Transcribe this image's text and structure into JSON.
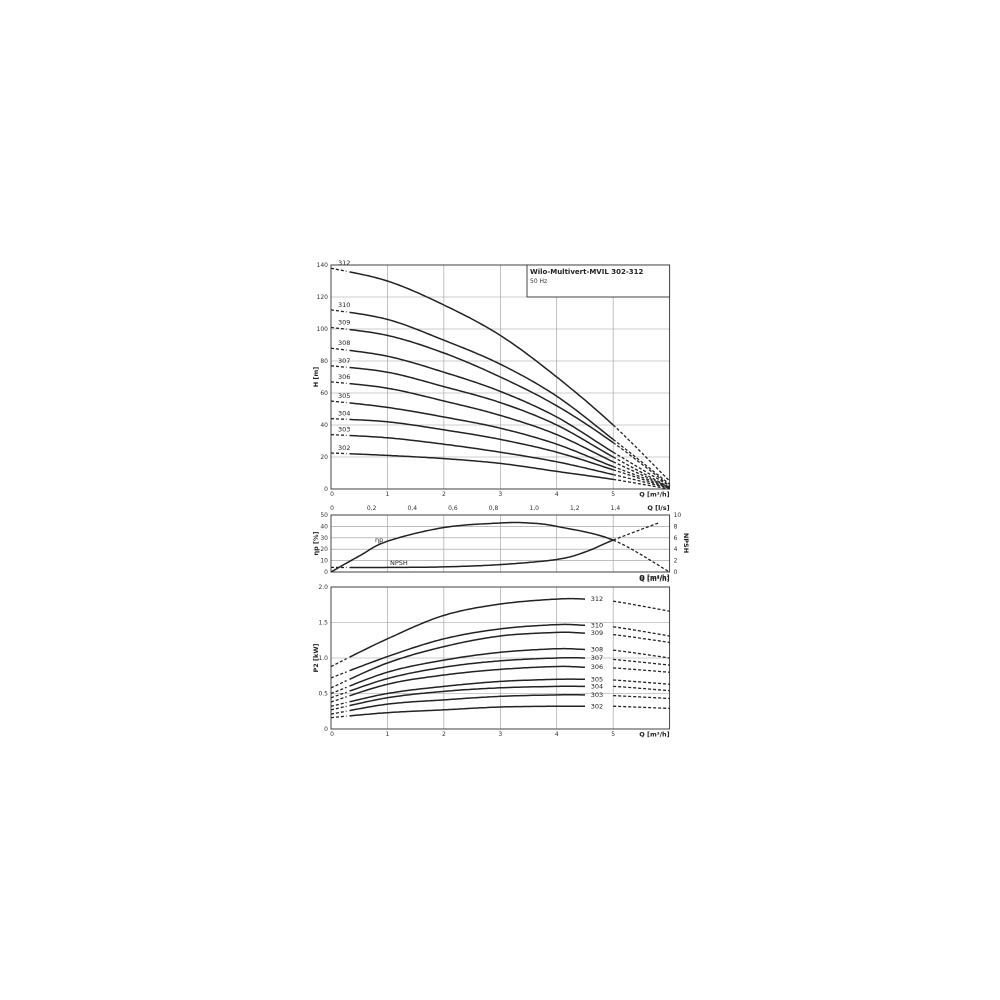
{
  "chart_data": [
    {
      "type": "line",
      "title": "Wilo-Multivert-MVIL 302-312",
      "subtitle": "50 Hz",
      "ylabel": "H [m]",
      "xlabel": "Q [m³/h]",
      "x2label": "Q [l/s]",
      "xlim": [
        0,
        6
      ],
      "ylim": [
        0,
        140
      ],
      "xticks": [
        "0",
        "1",
        "2",
        "3",
        "4",
        "5"
      ],
      "x2ticks": [
        "0",
        "0,2",
        "0,4",
        "0,6",
        "0,8",
        "1,0",
        "1,2",
        "1,4"
      ],
      "yticks": [
        "0",
        "20",
        "40",
        "60",
        "80",
        "100",
        "120",
        "140"
      ],
      "grid": true,
      "x": [
        0,
        1,
        2,
        3,
        4,
        5,
        6
      ],
      "series": [
        {
          "name": "312",
          "values": [
            138,
            130,
            115,
            96,
            70,
            40,
            5
          ]
        },
        {
          "name": "310",
          "values": [
            112,
            106,
            93,
            78,
            58,
            31,
            3
          ]
        },
        {
          "name": "309",
          "values": [
            101,
            96,
            85,
            70,
            52,
            29,
            2
          ]
        },
        {
          "name": "308",
          "values": [
            88,
            83,
            73,
            61,
            45,
            23,
            2
          ]
        },
        {
          "name": "307",
          "values": [
            77,
            73,
            64,
            54,
            40,
            20,
            1
          ]
        },
        {
          "name": "306",
          "values": [
            67,
            63,
            55,
            46,
            34,
            17,
            1
          ]
        },
        {
          "name": "305",
          "values": [
            55,
            51,
            45,
            38,
            28,
            14,
            1
          ]
        },
        {
          "name": "304",
          "values": [
            44,
            42,
            37,
            31,
            23,
            12,
            0.5
          ]
        },
        {
          "name": "303",
          "values": [
            34,
            32,
            28,
            23,
            17,
            9,
            0.5
          ]
        },
        {
          "name": "302",
          "values": [
            22.5,
            21,
            19,
            16,
            11,
            6,
            0
          ]
        }
      ]
    },
    {
      "type": "line",
      "ylabel": "ηp [%]",
      "y2label": "NPSH",
      "xlabel": "Q [m³/h]",
      "xlim": [
        0,
        6
      ],
      "ylim": [
        0,
        50
      ],
      "y2lim": [
        0,
        10
      ],
      "yticks": [
        "0",
        "10",
        "20",
        "30",
        "40",
        "50"
      ],
      "y2ticks": [
        "0",
        "2",
        "4",
        "6",
        "8",
        "10"
      ],
      "grid": true,
      "series": [
        {
          "name": "ηp",
          "axis": "left",
          "x": [
            0,
            0.5,
            1,
            2,
            3,
            3.5,
            4,
            5,
            6
          ],
          "values": [
            0,
            14,
            27,
            39,
            43,
            43,
            40,
            28,
            0
          ]
        },
        {
          "name": "NPSH",
          "axis": "right",
          "x": [
            0,
            1,
            2,
            3,
            4,
            4.5,
            5,
            5.8
          ],
          "values": [
            0.8,
            0.8,
            0.9,
            1.3,
            2.2,
            3.5,
            5.6,
            8.6
          ]
        }
      ]
    },
    {
      "type": "line",
      "ylabel": "P2 [kW]",
      "xlabel": "Q [m³/h]",
      "xlim": [
        0,
        6
      ],
      "ylim": [
        0,
        2.0
      ],
      "xticks": [
        "0",
        "1",
        "2",
        "3",
        "4",
        "5"
      ],
      "yticks": [
        "0",
        "0.5",
        "1.0",
        "1.5",
        "2.0"
      ],
      "grid": true,
      "x": [
        0,
        1,
        2,
        3,
        4,
        4.5,
        5,
        6
      ],
      "series": [
        {
          "name": "312",
          "values": [
            0.88,
            1.27,
            1.6,
            1.76,
            1.83,
            1.83,
            1.8,
            1.66
          ]
        },
        {
          "name": "310",
          "values": [
            0.72,
            1.02,
            1.27,
            1.41,
            1.47,
            1.46,
            1.44,
            1.31
          ]
        },
        {
          "name": "309",
          "values": [
            0.58,
            0.93,
            1.16,
            1.31,
            1.36,
            1.35,
            1.33,
            1.22
          ]
        },
        {
          "name": "308",
          "values": [
            0.5,
            0.8,
            0.97,
            1.08,
            1.13,
            1.12,
            1.11,
            1.0
          ]
        },
        {
          "name": "307",
          "values": [
            0.44,
            0.71,
            0.87,
            0.96,
            1.0,
            1.0,
            0.98,
            0.9
          ]
        },
        {
          "name": "306",
          "values": [
            0.38,
            0.63,
            0.76,
            0.84,
            0.88,
            0.87,
            0.86,
            0.8
          ]
        },
        {
          "name": "305",
          "values": [
            0.32,
            0.5,
            0.6,
            0.67,
            0.7,
            0.7,
            0.69,
            0.63
          ]
        },
        {
          "name": "304",
          "values": [
            0.27,
            0.44,
            0.53,
            0.58,
            0.6,
            0.6,
            0.6,
            0.54
          ]
        },
        {
          "name": "303",
          "values": [
            0.21,
            0.35,
            0.41,
            0.46,
            0.48,
            0.48,
            0.47,
            0.43
          ]
        },
        {
          "name": "302",
          "values": [
            0.16,
            0.23,
            0.27,
            0.31,
            0.32,
            0.32,
            0.32,
            0.29
          ]
        }
      ]
    }
  ]
}
